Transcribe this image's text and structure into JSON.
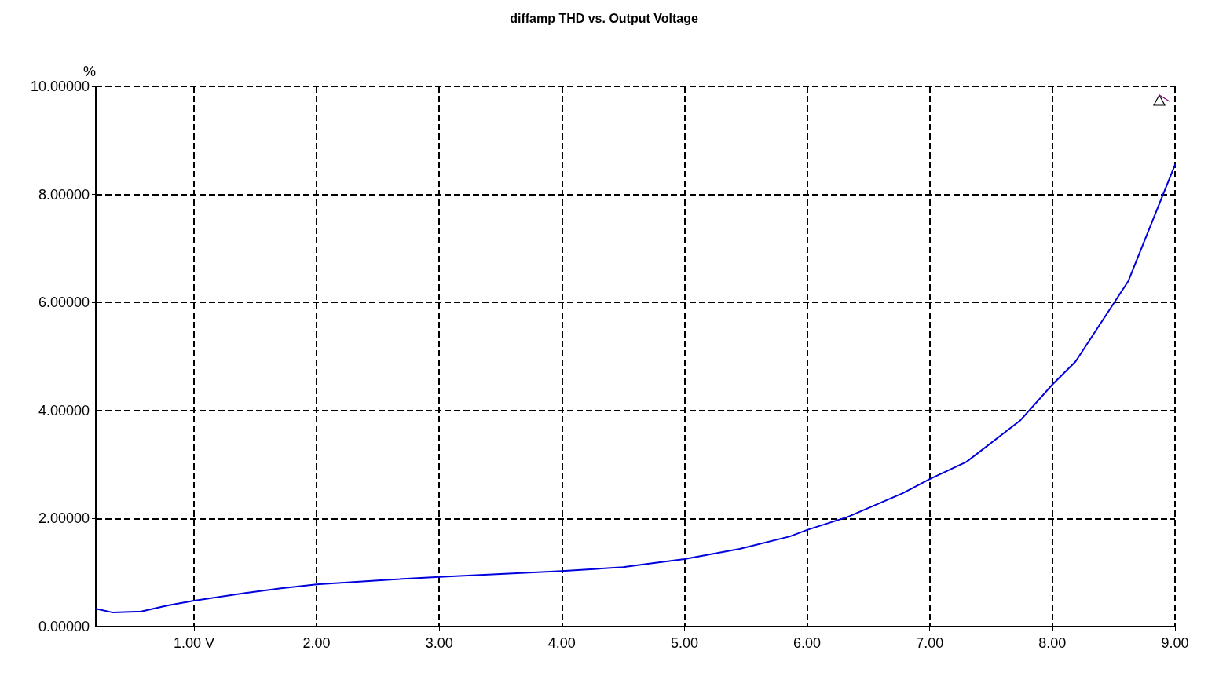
{
  "chart_data": {
    "type": "line",
    "title": "diffamp THD vs. Output Voltage",
    "ylabel": "%",
    "xlim": [
      0.2,
      9.0
    ],
    "xticks": [
      {
        "value": 1,
        "label": "1.00 V"
      },
      {
        "value": 2,
        "label": "2.00"
      },
      {
        "value": 3,
        "label": "3.00"
      },
      {
        "value": 4,
        "label": "4.00"
      },
      {
        "value": 5,
        "label": "5.00"
      },
      {
        "value": 6,
        "label": "6.00"
      },
      {
        "value": 7,
        "label": "7.00"
      },
      {
        "value": 8,
        "label": "8.00"
      },
      {
        "value": 9,
        "label": "9.00"
      }
    ],
    "ylim": [
      0,
      10
    ],
    "yticks": [
      {
        "value": 0,
        "label": "0.00000"
      },
      {
        "value": 2,
        "label": "2.00000"
      },
      {
        "value": 4,
        "label": "4.00000"
      },
      {
        "value": 6,
        "label": "6.00000"
      },
      {
        "value": 8,
        "label": "8.00000"
      },
      {
        "value": 10,
        "label": "10.00000"
      }
    ],
    "grid": true,
    "marker": "none",
    "line_style": "solid",
    "series": [
      {
        "color": "#0000dd",
        "x": [
          0.2,
          0.34,
          0.57,
          0.78,
          1.0,
          1.42,
          1.71,
          2.0,
          2.6,
          3.0,
          4.0,
          4.5,
          4.69,
          5.0,
          5.45,
          5.86,
          6.0,
          6.33,
          6.78,
          7.0,
          7.3,
          7.74,
          8.0,
          8.19,
          8.62,
          9.0
        ],
        "values": [
          0.33,
          0.26,
          0.28,
          0.39,
          0.48,
          0.62,
          0.71,
          0.78,
          0.87,
          0.92,
          1.03,
          1.1,
          1.16,
          1.25,
          1.44,
          1.67,
          1.79,
          2.03,
          2.47,
          2.73,
          3.05,
          3.82,
          4.48,
          4.91,
          6.4,
          8.55
        ]
      }
    ]
  }
}
